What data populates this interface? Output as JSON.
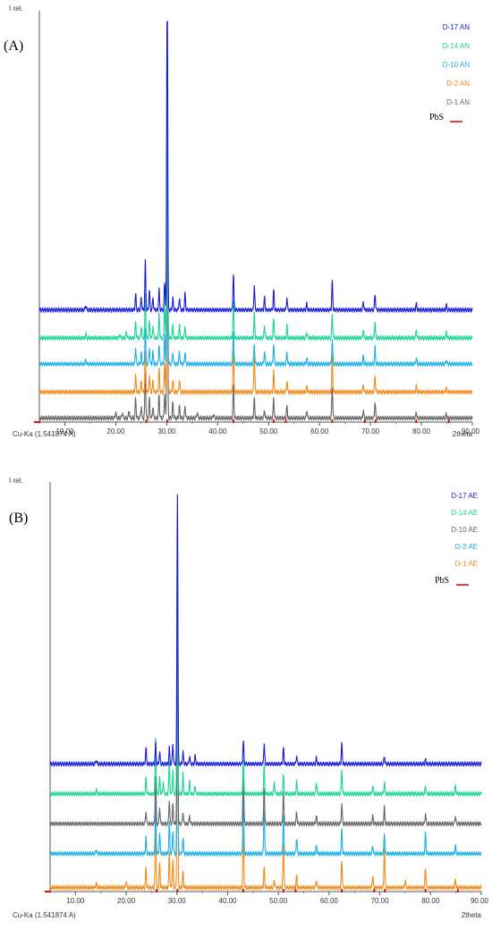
{
  "chart_data": [
    {
      "type": "line",
      "panel_label": "(A)",
      "ylabel": "I rel.",
      "xlabel": "2theta",
      "source": "Cu-Ka (1.541874 A)",
      "xlim": [
        5,
        90
      ],
      "ylim": [
        0,
        100
      ],
      "x_ticks": [
        10,
        20,
        30,
        40,
        50,
        60,
        70,
        80,
        90
      ],
      "x_tick_labels": [
        "10.00",
        "20.00",
        "30.00",
        "40.00",
        "50.00",
        "60.00",
        "70.00",
        "80.00",
        "90.00"
      ],
      "legend_position": "top-right",
      "series": [
        {
          "name": "D-17 AN",
          "color": "#1a1adb",
          "baseline": 28,
          "peaks": [
            [
              14.1,
              1.2
            ],
            [
              23.9,
              4
            ],
            [
              25.0,
              3
            ],
            [
              25.8,
              12
            ],
            [
              26.6,
              5
            ],
            [
              27.3,
              3
            ],
            [
              28.5,
              5
            ],
            [
              29.6,
              7
            ],
            [
              30.1,
              100
            ],
            [
              31.2,
              3
            ],
            [
              32.5,
              3
            ],
            [
              33.6,
              4
            ],
            [
              43.1,
              9
            ],
            [
              47.2,
              6
            ],
            [
              49.2,
              3
            ],
            [
              51.0,
              5
            ],
            [
              53.6,
              3
            ],
            [
              57.5,
              1.5
            ],
            [
              62.5,
              7
            ],
            [
              68.6,
              2
            ],
            [
              70.9,
              4
            ],
            [
              79.0,
              1.5
            ],
            [
              84.9,
              1.2
            ]
          ]
        },
        {
          "name": "D-14 AN",
          "color": "#19d496",
          "baseline": 21,
          "peaks": [
            [
              14.1,
              1
            ],
            [
              20.8,
              1
            ],
            [
              22.1,
              1.5
            ],
            [
              23.9,
              4
            ],
            [
              25.0,
              3
            ],
            [
              25.8,
              11
            ],
            [
              26.6,
              4
            ],
            [
              27.3,
              3
            ],
            [
              28.5,
              6
            ],
            [
              29.6,
              8
            ],
            [
              30.1,
              75
            ],
            [
              31.2,
              3
            ],
            [
              32.5,
              3
            ],
            [
              33.6,
              3
            ],
            [
              43.1,
              9
            ],
            [
              47.2,
              6
            ],
            [
              49.2,
              3
            ],
            [
              51.0,
              5
            ],
            [
              53.6,
              3
            ],
            [
              57.5,
              1.5
            ],
            [
              62.5,
              6
            ],
            [
              68.6,
              2
            ],
            [
              70.9,
              4
            ],
            [
              79.0,
              2
            ],
            [
              84.9,
              1.5
            ]
          ]
        },
        {
          "name": "D-10 AN",
          "color": "#19b0e6",
          "baseline": 14.5,
          "peaks": [
            [
              14.1,
              1
            ],
            [
              23.9,
              4
            ],
            [
              25.0,
              3
            ],
            [
              25.8,
              9
            ],
            [
              26.6,
              4
            ],
            [
              27.3,
              3
            ],
            [
              28.5,
              5
            ],
            [
              29.6,
              7
            ],
            [
              30.1,
              60
            ],
            [
              31.2,
              3
            ],
            [
              32.5,
              3
            ],
            [
              33.6,
              3
            ],
            [
              43.1,
              8
            ],
            [
              47.2,
              5
            ],
            [
              49.2,
              3
            ],
            [
              51.0,
              5
            ],
            [
              53.6,
              3
            ],
            [
              57.5,
              1.5
            ],
            [
              62.5,
              6
            ],
            [
              68.6,
              2
            ],
            [
              70.9,
              4
            ],
            [
              79.0,
              1.5
            ],
            [
              84.9,
              1
            ]
          ]
        },
        {
          "name": "D-2 AN",
          "color": "#f28a19",
          "baseline": 7.5,
          "peaks": [
            [
              23.9,
              4
            ],
            [
              25.0,
              3
            ],
            [
              25.8,
              10
            ],
            [
              26.6,
              4
            ],
            [
              27.3,
              3
            ],
            [
              28.5,
              6
            ],
            [
              29.6,
              7
            ],
            [
              30.1,
              80
            ],
            [
              31.2,
              3
            ],
            [
              32.5,
              3
            ],
            [
              43.1,
              10
            ],
            [
              47.2,
              9
            ],
            [
              51.0,
              5
            ],
            [
              53.6,
              3
            ],
            [
              57.5,
              1.5
            ],
            [
              62.5,
              9
            ],
            [
              68.6,
              2
            ],
            [
              70.9,
              4
            ],
            [
              79.0,
              1.5
            ],
            [
              84.9,
              1
            ]
          ]
        },
        {
          "name": "D-1 AN",
          "color": "#666666",
          "baseline": 1,
          "peaks": [
            [
              20.0,
              1.5
            ],
            [
              21.3,
              1.5
            ],
            [
              22.6,
              2
            ],
            [
              23.9,
              5
            ],
            [
              25.0,
              3
            ],
            [
              25.8,
              12
            ],
            [
              26.6,
              5
            ],
            [
              27.3,
              3
            ],
            [
              28.5,
              6
            ],
            [
              29.6,
              6
            ],
            [
              30.1,
              55
            ],
            [
              31.2,
              4
            ],
            [
              32.5,
              3
            ],
            [
              33.6,
              3
            ],
            [
              36.0,
              1.5
            ],
            [
              39.2,
              1
            ],
            [
              43.1,
              8
            ],
            [
              47.2,
              5
            ],
            [
              49.2,
              2
            ],
            [
              51.0,
              5
            ],
            [
              53.6,
              3
            ],
            [
              57.5,
              2
            ],
            [
              62.5,
              8
            ],
            [
              68.6,
              2
            ],
            [
              70.9,
              4
            ],
            [
              79.0,
              1.5
            ],
            [
              84.9,
              1
            ]
          ]
        }
      ],
      "reference": {
        "name": "PbS",
        "color": "#e01010",
        "positions": [
          26.0,
          30.1,
          43.1,
          51.0,
          53.4,
          62.5,
          68.9,
          71.0,
          79.0,
          85.4
        ]
      }
    },
    {
      "type": "line",
      "panel_label": "(B)",
      "ylabel": "I rel.",
      "xlabel": "2theta",
      "source": "Cu-Ka (1.541874 A)",
      "xlim": [
        5,
        90
      ],
      "ylim": [
        0,
        100
      ],
      "x_ticks": [
        10,
        20,
        30,
        40,
        50,
        60,
        70,
        80,
        90
      ],
      "x_tick_labels": [
        "10.00",
        "20.00",
        "30.00",
        "40.00",
        "50.00",
        "60.00",
        "70.00",
        "80.00",
        "90.00"
      ],
      "legend_position": "top-right",
      "series": [
        {
          "name": "D-17 AE",
          "color": "#1a1adb",
          "baseline": 32,
          "peaks": [
            [
              14.1,
              1
            ],
            [
              23.9,
              4
            ],
            [
              25.8,
              5
            ],
            [
              26.6,
              3
            ],
            [
              28.5,
              4
            ],
            [
              29.2,
              5
            ],
            [
              30.1,
              68
            ],
            [
              31.2,
              3
            ],
            [
              32.5,
              2
            ],
            [
              33.6,
              2
            ],
            [
              43.1,
              6
            ],
            [
              47.2,
              5
            ],
            [
              51.0,
              4
            ],
            [
              53.6,
              2
            ],
            [
              57.5,
              1.5
            ],
            [
              62.5,
              5
            ],
            [
              70.9,
              2
            ],
            [
              79.0,
              1
            ]
          ]
        },
        {
          "name": "D-14 AE",
          "color": "#19d496",
          "baseline": 24.5,
          "peaks": [
            [
              14.1,
              1
            ],
            [
              23.9,
              4
            ],
            [
              25.8,
              14
            ],
            [
              26.6,
              4
            ],
            [
              27.3,
              3
            ],
            [
              28.5,
              8
            ],
            [
              29.2,
              6
            ],
            [
              30.1,
              70
            ],
            [
              31.2,
              5
            ],
            [
              32.5,
              3
            ],
            [
              33.6,
              2
            ],
            [
              43.1,
              8
            ],
            [
              47.2,
              7
            ],
            [
              49.2,
              3
            ],
            [
              51.0,
              5
            ],
            [
              53.6,
              3
            ],
            [
              57.5,
              3
            ],
            [
              62.5,
              6
            ],
            [
              68.6,
              2
            ],
            [
              70.9,
              3
            ],
            [
              79.0,
              2
            ],
            [
              84.9,
              2
            ]
          ]
        },
        {
          "name": "D-10 AE",
          "color": "#666666",
          "baseline": 17,
          "peaks": [
            [
              23.9,
              3
            ],
            [
              25.8,
              12
            ],
            [
              26.6,
              4
            ],
            [
              28.5,
              6
            ],
            [
              29.2,
              5
            ],
            [
              30.1,
              55
            ],
            [
              31.2,
              3
            ],
            [
              32.5,
              2
            ],
            [
              43.1,
              14
            ],
            [
              47.2,
              9
            ],
            [
              51.0,
              8
            ],
            [
              53.6,
              3
            ],
            [
              57.5,
              2
            ],
            [
              62.5,
              5
            ],
            [
              68.6,
              2
            ],
            [
              70.9,
              4
            ],
            [
              79.0,
              2.5
            ],
            [
              84.9,
              2
            ]
          ]
        },
        {
          "name": "D-2 AE",
          "color": "#19b0e6",
          "baseline": 9.5,
          "peaks": [
            [
              14.1,
              1
            ],
            [
              23.9,
              4
            ],
            [
              25.8,
              14
            ],
            [
              26.6,
              5
            ],
            [
              28.5,
              8
            ],
            [
              29.2,
              6
            ],
            [
              30.1,
              60
            ],
            [
              31.2,
              4
            ],
            [
              43.1,
              14
            ],
            [
              47.2,
              11
            ],
            [
              51.0,
              9
            ],
            [
              53.6,
              4
            ],
            [
              57.5,
              2
            ],
            [
              62.5,
              6
            ],
            [
              68.6,
              2
            ],
            [
              70.9,
              5
            ],
            [
              79.0,
              5
            ],
            [
              84.9,
              2
            ]
          ]
        },
        {
          "name": "D-1 AE",
          "color": "#f28a19",
          "baseline": 1,
          "peaks": [
            [
              14.1,
              1
            ],
            [
              20.0,
              1.5
            ],
            [
              23.9,
              5
            ],
            [
              25.8,
              17
            ],
            [
              26.6,
              6
            ],
            [
              28.5,
              9
            ],
            [
              29.2,
              7
            ],
            [
              30.1,
              55
            ],
            [
              31.2,
              4
            ],
            [
              43.1,
              14
            ],
            [
              47.2,
              5
            ],
            [
              49.2,
              2
            ],
            [
              51.0,
              11
            ],
            [
              53.6,
              3
            ],
            [
              57.5,
              2
            ],
            [
              62.5,
              7
            ],
            [
              68.6,
              3
            ],
            [
              70.9,
              10
            ],
            [
              75.0,
              2
            ],
            [
              79.0,
              5
            ],
            [
              84.9,
              2
            ]
          ]
        }
      ],
      "reference": {
        "name": "PbS",
        "color": "#e01010",
        "positions": [
          26.0,
          30.1,
          43.1,
          51.0,
          53.4,
          62.5,
          68.9,
          71.0,
          79.0,
          85.4
        ]
      }
    }
  ]
}
